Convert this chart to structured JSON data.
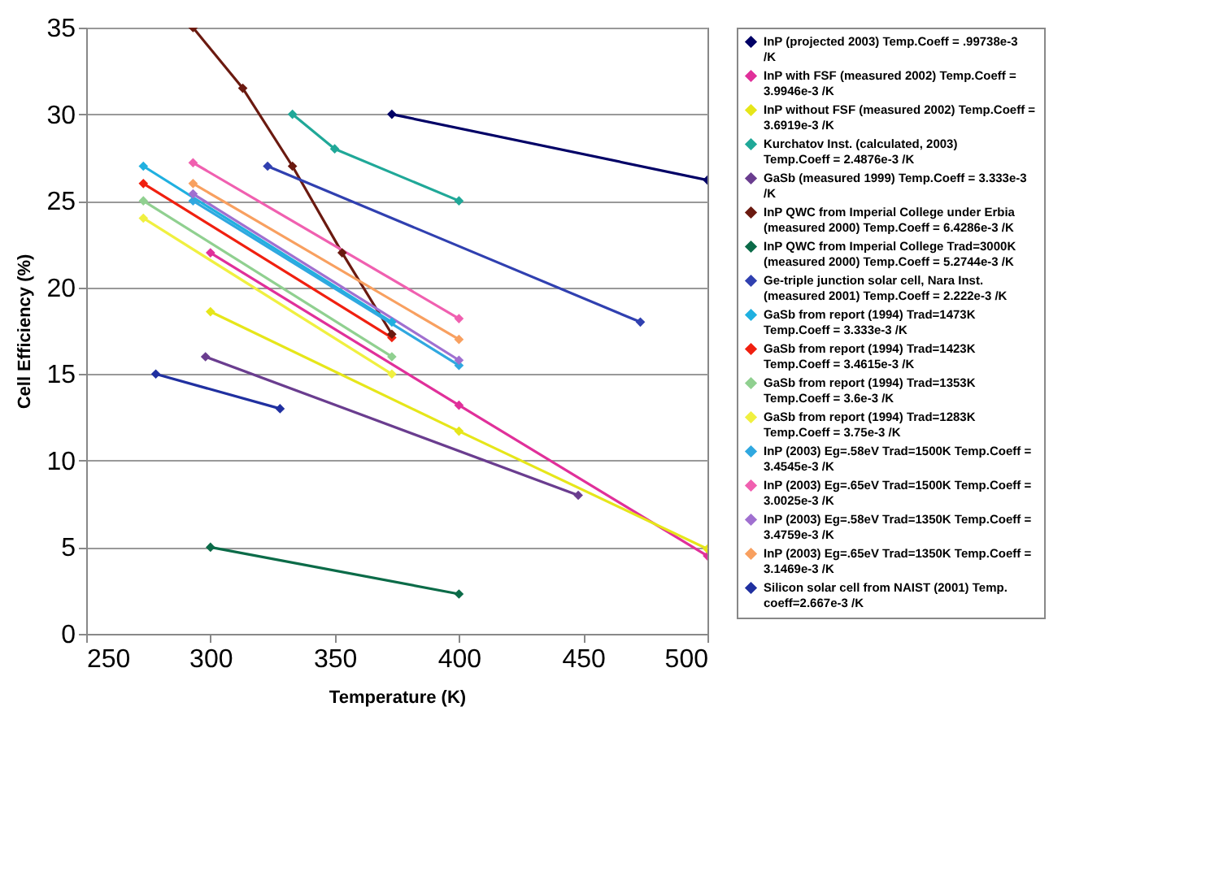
{
  "chart_data": {
    "type": "line",
    "xlabel": "Temperature (K)",
    "ylabel": "Cell Efficiency (%)",
    "xlim": [
      250,
      500
    ],
    "xticks": [
      250,
      300,
      350,
      400,
      450,
      500
    ],
    "ylim": [
      0,
      35
    ],
    "yticks": [
      0,
      5,
      10,
      15,
      20,
      25,
      30,
      35
    ],
    "grid": "y",
    "legend": "right",
    "marker": "diamond",
    "series": [
      {
        "name": "InP (projected 2003) Temp.Coeff = .99738e-3 /K",
        "color": "#000066",
        "x": [
          373,
          500
        ],
        "values": [
          30,
          26.2
        ]
      },
      {
        "name": "InP with FSF (measured 2002) Temp.Coeff = 3.9946e-3 /K",
        "color": "#e0309a",
        "x": [
          300,
          400,
          500
        ],
        "values": [
          22,
          13.2,
          4.5
        ]
      },
      {
        "name": "InP without FSF (measured 2002) Temp.Coeff = 3.6919e-3 /K",
        "color": "#e6e61a",
        "x": [
          300,
          400,
          500
        ],
        "values": [
          18.6,
          11.7,
          4.9
        ]
      },
      {
        "name": "Kurchatov Inst. (calculated, 2003) Temp.Coeff = 2.4876e-3 /K",
        "color": "#20a898",
        "x": [
          333,
          350,
          400
        ],
        "values": [
          30,
          28,
          25
        ]
      },
      {
        "name": "GaSb (measured 1999) Temp.Coeff = 3.333e-3 /K",
        "color": "#6a3d8f",
        "x": [
          298,
          448
        ],
        "values": [
          16,
          8
        ]
      },
      {
        "name": "InP QWC from Imperial College under Erbia (measured 2000) Temp.Coeff = 6.4286e-3 /K",
        "color": "#6b1a10",
        "x": [
          293,
          313,
          333,
          353,
          373
        ],
        "values": [
          35,
          31.5,
          27,
          22,
          17.3
        ]
      },
      {
        "name": "InP QWC from Imperial College Trad=3000K (measured 2000) Temp.Coeff = 5.2744e-3 /K",
        "color": "#0b6b48",
        "x": [
          300,
          400
        ],
        "values": [
          5,
          2.3
        ]
      },
      {
        "name": "Ge-triple junction solar cell, Nara Inst. (measured 2001) Temp.Coeff = 2.222e-3 /K",
        "color": "#3040b0",
        "x": [
          323,
          473
        ],
        "values": [
          27,
          18
        ]
      },
      {
        "name": "GaSb from report (1994) Trad=1473K Temp.Coeff = 3.333e-3 /K",
        "color": "#20b0e0",
        "x": [
          273,
          373
        ],
        "values": [
          27,
          18
        ]
      },
      {
        "name": "GaSb from report (1994) Trad=1423K Temp.Coeff = 3.4615e-3 /K",
        "color": "#f02010",
        "x": [
          273,
          373
        ],
        "values": [
          26,
          17.1
        ]
      },
      {
        "name": "GaSb from report (1994) Trad=1353K Temp.Coeff = 3.6e-3 /K",
        "color": "#90d090",
        "x": [
          273,
          373
        ],
        "values": [
          25,
          16
        ]
      },
      {
        "name": "GaSb from report (1994) Trad=1283K Temp.Coeff = 3.75e-3 /K",
        "color": "#f0f040",
        "x": [
          273,
          373
        ],
        "values": [
          24,
          15
        ]
      },
      {
        "name": "InP (2003) Eg=.58eV Trad=1500K Temp.Coeff = 3.4545e-3 /K",
        "color": "#30a8e0",
        "x": [
          293,
          400
        ],
        "values": [
          25,
          15.5
        ]
      },
      {
        "name": "InP (2003) Eg=.65eV Trad=1500K Temp.Coeff = 3.0025e-3 /K",
        "color": "#f060b0",
        "x": [
          293,
          400
        ],
        "values": [
          27.2,
          18.2
        ]
      },
      {
        "name": "InP (2003) Eg=.58eV Trad=1350K Temp.Coeff = 3.4759e-3 /K",
        "color": "#a070d0",
        "x": [
          293,
          400
        ],
        "values": [
          25.4,
          15.8
        ]
      },
      {
        "name": "InP (2003) Eg=.65eV Trad=1350K Temp.Coeff = 3.1469e-3 /K",
        "color": "#f8a060",
        "x": [
          293,
          400
        ],
        "values": [
          26,
          17
        ]
      },
      {
        "name": "Silicon solar cell from NAIST (2001) Temp. coeff=2.667e-3 /K",
        "color": "#2030a0",
        "x": [
          278,
          328
        ],
        "values": [
          15,
          13
        ]
      }
    ]
  }
}
